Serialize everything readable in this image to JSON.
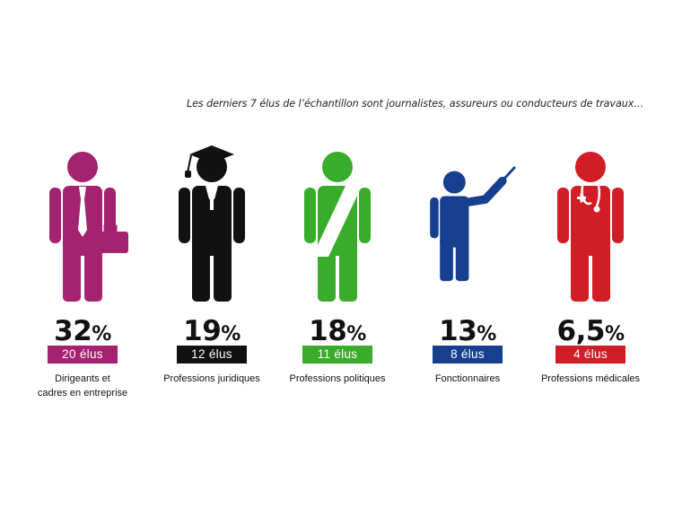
{
  "note": "Les derniers 7 élus de l’échantillon sont journalistes, assureurs ou conducteurs de travaux…",
  "chart_data": {
    "type": "table",
    "title": "",
    "categories": [
      {
        "id": "dirigeants",
        "label_lines": [
          "Dirigeants et",
          "cadres en entreprise"
        ],
        "percent_num": "32",
        "percent_sign": "%",
        "value_percent": 32,
        "count_label": "20 élus",
        "count": 20,
        "color": "#a4226f",
        "icon": "businessman-with-briefcase-icon"
      },
      {
        "id": "juridiques",
        "label_lines": [
          "Professions juridiques"
        ],
        "percent_num": "19",
        "percent_sign": "%",
        "value_percent": 19,
        "count_label": "12 élus",
        "count": 12,
        "color": "#111111",
        "icon": "graduate-in-robe-icon"
      },
      {
        "id": "politiques",
        "label_lines": [
          "Professions politiques"
        ],
        "percent_num": "18",
        "percent_sign": "%",
        "value_percent": 18,
        "count_label": "11 élus",
        "count": 11,
        "color": "#3aac2c",
        "icon": "person-with-sash-icon"
      },
      {
        "id": "fonctionnaires",
        "label_lines": [
          "Fonctionnaires"
        ],
        "percent_num": "13",
        "percent_sign": "%",
        "value_percent": 13,
        "count_label": "8 élus",
        "count": 8,
        "color": "#173f8f",
        "icon": "teacher-with-pointer-icon"
      },
      {
        "id": "medicales",
        "label_lines": [
          "Professions médicales"
        ],
        "percent_num": "6,5",
        "percent_sign": "%",
        "value_percent": 6.5,
        "count_label": "4 élus",
        "count": 4,
        "color": "#d01d26",
        "icon": "doctor-with-stethoscope-icon"
      }
    ]
  }
}
